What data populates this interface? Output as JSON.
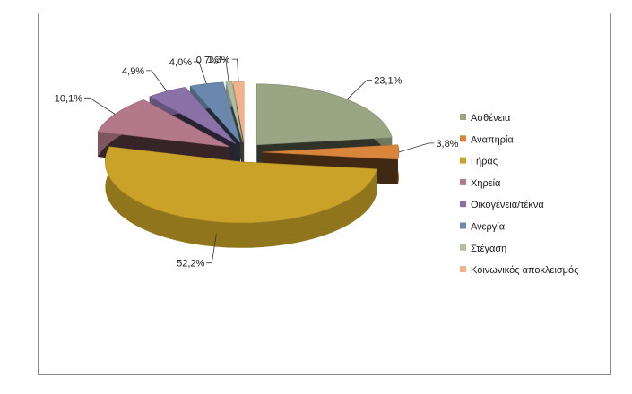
{
  "chart_data": {
    "type": "pie",
    "style": "3d-exploded",
    "categories": [
      "Ασθένεια",
      "Αναπηρία",
      "Γήρας",
      "Χηρεία",
      "Οικογένεια/τέκνα",
      "Ανεργία",
      "Στέγαση",
      "Κοινωνικός αποκλεισμός"
    ],
    "values": [
      23.1,
      3.8,
      52.2,
      10.1,
      4.9,
      4.0,
      0.7,
      1.3
    ],
    "labels": [
      "23,1%",
      "3,8%",
      "52,2%",
      "10,1%",
      "4,9%",
      "4,0%",
      "0,7%",
      "1,3%"
    ],
    "colors": [
      "#9aa584",
      "#d9853b",
      "#c9a227",
      "#b3788a",
      "#8a72a8",
      "#6a88ad",
      "#aebfa4",
      "#f2b38a"
    ],
    "legend_position": "right"
  }
}
